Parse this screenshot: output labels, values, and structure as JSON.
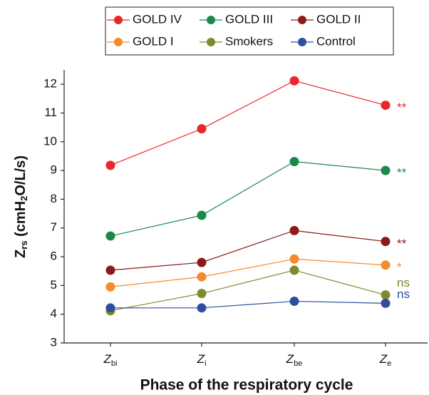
{
  "chart_data": {
    "type": "line",
    "x_label": "Phase of the respiratory cycle",
    "y_label": {
      "parts": [
        "Z",
        "rs",
        " (cmH",
        "2",
        "O/L/s)"
      ]
    },
    "categories": [
      {
        "symbol": "Z",
        "subscript": "bi"
      },
      {
        "symbol": "Z",
        "subscript": "i"
      },
      {
        "symbol": "Z",
        "subscript": "be"
      },
      {
        "symbol": "Z",
        "subscript": "e"
      }
    ],
    "series": [
      {
        "name": "GOLD IV",
        "color": "#e8262b",
        "values": [
          9.18,
          10.45,
          12.12,
          11.27
        ],
        "annotation": "**"
      },
      {
        "name": "GOLD III",
        "color": "#1a8a4a",
        "values": [
          6.72,
          7.44,
          9.31,
          9.0
        ],
        "annotation": "**"
      },
      {
        "name": "GOLD II",
        "color": "#8b1a1a",
        "values": [
          5.53,
          5.8,
          6.91,
          6.53
        ],
        "annotation": "**"
      },
      {
        "name": "GOLD I",
        "color": "#f58a2e",
        "values": [
          4.95,
          5.3,
          5.92,
          5.71
        ],
        "annotation": "*"
      },
      {
        "name": "Smokers",
        "color": "#7f8a2a",
        "values": [
          4.12,
          4.72,
          5.53,
          4.67
        ],
        "annotation": "ns"
      },
      {
        "name": "Control",
        "color": "#2e4fa0",
        "values": [
          4.22,
          4.22,
          4.45,
          4.38
        ],
        "annotation": "ns"
      }
    ],
    "ylim": [
      3,
      12.5
    ],
    "yticks": [
      3,
      4,
      5,
      6,
      7,
      8,
      9,
      10,
      11,
      12
    ],
    "grid": false
  }
}
